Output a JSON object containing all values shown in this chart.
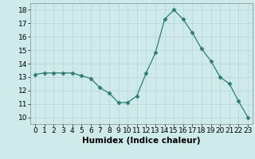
{
  "x": [
    0,
    1,
    2,
    3,
    4,
    5,
    6,
    7,
    8,
    9,
    10,
    11,
    12,
    13,
    14,
    15,
    16,
    17,
    18,
    19,
    20,
    21,
    22,
    23
  ],
  "y": [
    13.2,
    13.3,
    13.3,
    13.3,
    13.3,
    13.1,
    12.9,
    12.2,
    11.8,
    11.1,
    11.1,
    11.6,
    13.3,
    14.8,
    17.3,
    18.0,
    17.3,
    16.3,
    15.1,
    14.2,
    13.0,
    12.5,
    11.2,
    10.0
  ],
  "xlabel": "Humidex (Indice chaleur)",
  "xlim": [
    -0.5,
    23.5
  ],
  "ylim": [
    9.5,
    18.5
  ],
  "yticks": [
    10,
    11,
    12,
    13,
    14,
    15,
    16,
    17,
    18
  ],
  "xticks": [
    0,
    1,
    2,
    3,
    4,
    5,
    6,
    7,
    8,
    9,
    10,
    11,
    12,
    13,
    14,
    15,
    16,
    17,
    18,
    19,
    20,
    21,
    22,
    23
  ],
  "line_color": "#2e7d6e",
  "marker": "D",
  "marker_size": 2.5,
  "background_color": "#ceeaea",
  "grid_color": "#b8d4d4",
  "xlabel_fontsize": 7.5,
  "tick_fontsize": 6.5
}
